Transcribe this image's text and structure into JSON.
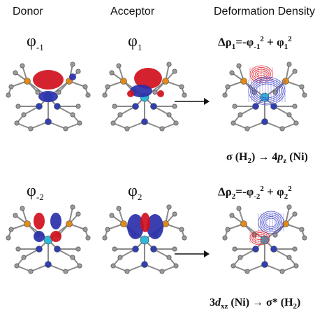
{
  "headers": {
    "donor": "Donor",
    "acceptor": "Acceptor",
    "deformation": "Deformation Density"
  },
  "row1": {
    "donor_phi": "φ",
    "donor_sub": "-1",
    "acceptor_phi": "φ",
    "acceptor_sub": "1",
    "eq_prefix": "Δρ",
    "eq_prefix_sub": "1",
    "eq_mid": "=-φ",
    "eq_sub1": "-1",
    "eq_sup1": "2",
    "eq_plus": " + φ",
    "eq_sub2": "1",
    "eq_sup2": "2",
    "note_pre": "σ (H",
    "note_sub": "2",
    "note_mid": ") → 4",
    "note_p": "p",
    "note_psub": "z",
    "note_end": " (Ni)"
  },
  "row2": {
    "donor_phi": "φ",
    "donor_sub": "-2",
    "acceptor_phi": "φ",
    "acceptor_sub": "2",
    "eq_prefix": "Δρ",
    "eq_prefix_sub": "2",
    "eq_mid": "=-φ",
    "eq_sub1": "-2",
    "eq_sup1": "2",
    "eq_plus": " + φ",
    "eq_sub2": "2",
    "eq_sup2": "2",
    "note_pre": "3",
    "note_d": "d",
    "note_dsub": "xz",
    "note_mid": " (Ni) → σ* (H",
    "note_sub": "2",
    "note_end": ")"
  },
  "colors": {
    "positive_lobe": "#d0101c",
    "negative_lobe": "#2a2fa8",
    "mesh_red": "#e0202c",
    "mesh_blue": "#3a40c8",
    "ni_atom": "#2fb8d8",
    "p_atom": "#e08a1a",
    "n_atom": "#3040b0",
    "c_atom": "#9a9a9a"
  }
}
